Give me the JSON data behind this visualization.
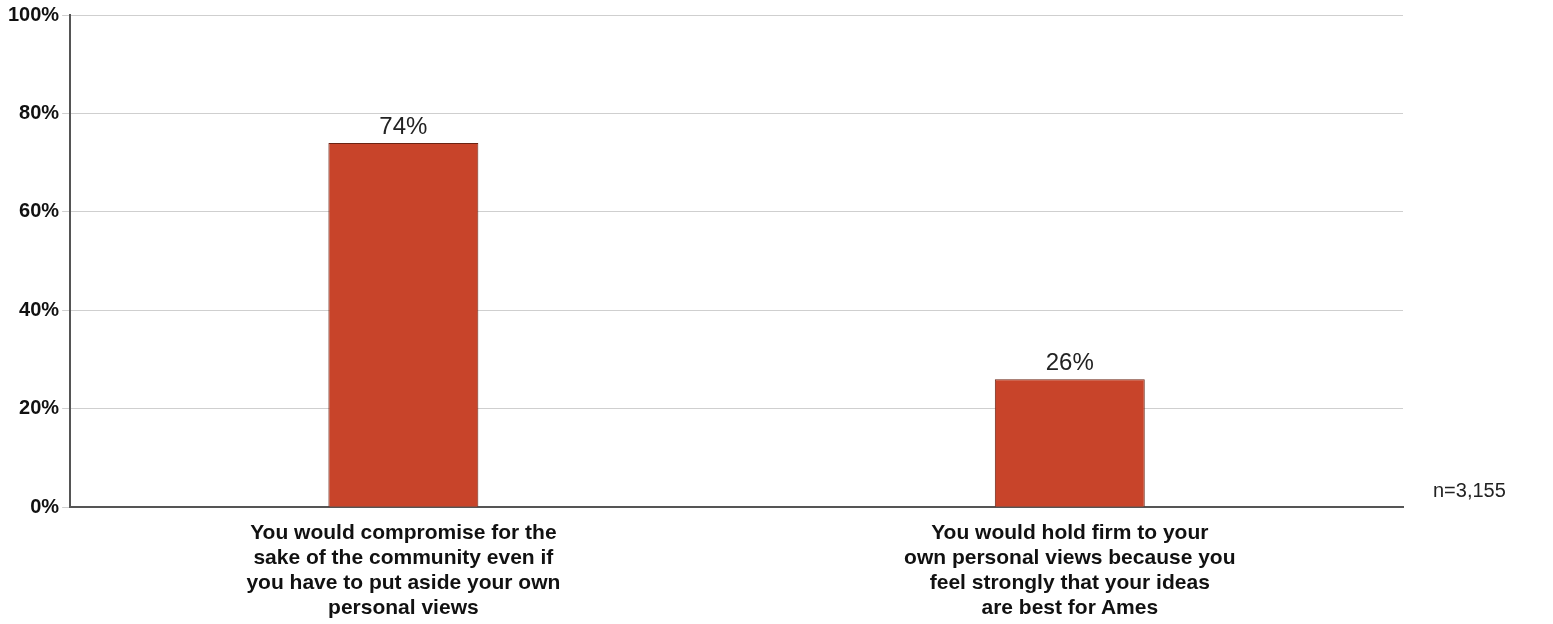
{
  "chart_data": {
    "type": "bar",
    "categories": [
      "You would compromise for the sake of the community even if you have to put aside your own personal views",
      "You would hold firm to your own personal views because you feel strongly that your ideas are best for Ames"
    ],
    "values": [
      74,
      26
    ],
    "color": "#c8442a",
    "value_labels": [
      "74%",
      "26%"
    ],
    "ylim": [
      0,
      100
    ],
    "yticks": [
      {
        "value": 0,
        "label": "0%"
      },
      {
        "value": 20,
        "label": "20%"
      },
      {
        "value": 40,
        "label": "40%"
      },
      {
        "value": 60,
        "label": "60%"
      },
      {
        "value": 80,
        "label": "80%"
      },
      {
        "value": 100,
        "label": "100%"
      }
    ],
    "grid": "y",
    "legend": false,
    "annotations": [
      "n=3,155"
    ]
  }
}
